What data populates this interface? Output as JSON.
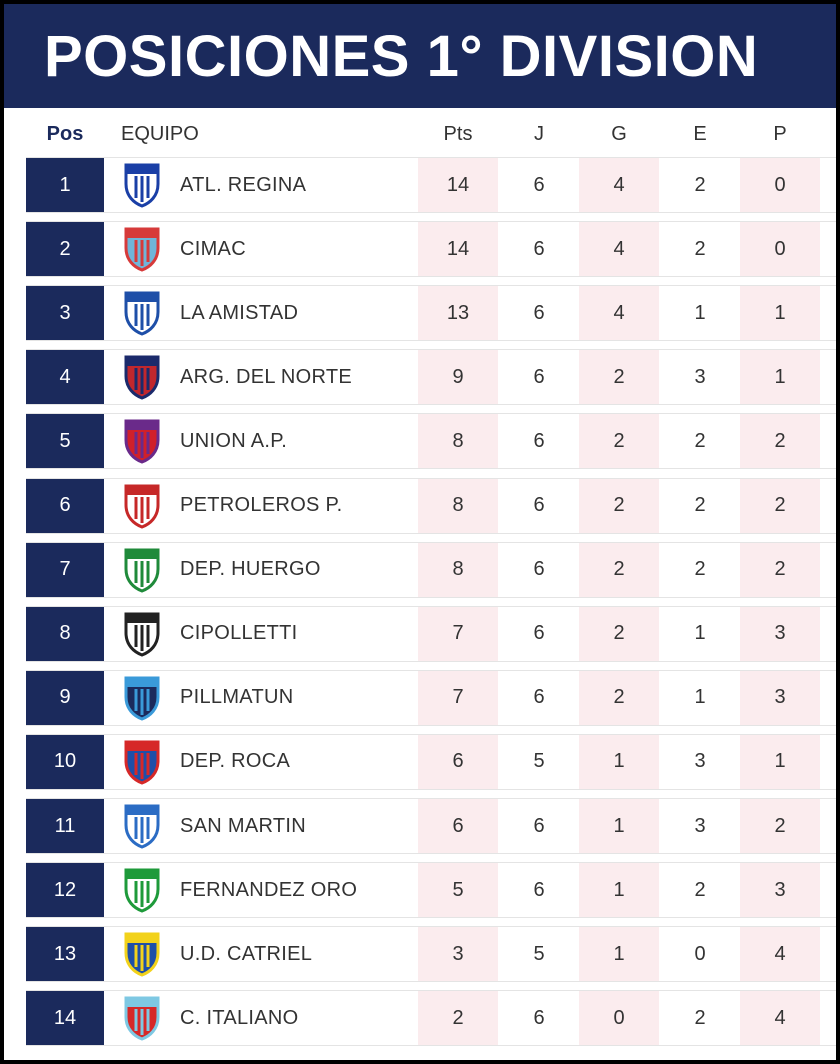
{
  "title": "POSICIONES 1° DIVISION",
  "columns": {
    "pos": "Pos",
    "team": "EQUIPO",
    "pts": "Pts",
    "j": "J",
    "g": "G",
    "e": "E",
    "p": "P"
  },
  "colors": {
    "banner": "#1b2a5c",
    "highlight": "#fbecee"
  },
  "rows": [
    {
      "pos": "1",
      "team": "ATL. REGINA",
      "pts": "14",
      "j": "6",
      "g": "4",
      "e": "2",
      "p": "0",
      "logo": "regina-crest-icon",
      "c1": "#1a3fa6",
      "c2": "#ffffff"
    },
    {
      "pos": "2",
      "team": "CIMAC",
      "pts": "14",
      "j": "6",
      "g": "4",
      "e": "2",
      "p": "0",
      "logo": "cimac-crest-icon",
      "c1": "#d63a3a",
      "c2": "#6fb5d9"
    },
    {
      "pos": "3",
      "team": "LA AMISTAD",
      "pts": "13",
      "j": "6",
      "g": "4",
      "e": "1",
      "p": "1",
      "logo": "amistad-crest-icon",
      "c1": "#1e4fa8",
      "c2": "#ffffff"
    },
    {
      "pos": "4",
      "team": "ARG. DEL NORTE",
      "pts": "9",
      "j": "6",
      "g": "2",
      "e": "3",
      "p": "1",
      "logo": "argnorte-crest-icon",
      "c1": "#1b2a6b",
      "c2": "#c1272d"
    },
    {
      "pos": "5",
      "team": "UNION A.P.",
      "pts": "8",
      "j": "6",
      "g": "2",
      "e": "2",
      "p": "2",
      "logo": "union-crest-icon",
      "c1": "#6a2a8a",
      "c2": "#d0202a"
    },
    {
      "pos": "6",
      "team": "PETROLEROS P.",
      "pts": "8",
      "j": "6",
      "g": "2",
      "e": "2",
      "p": "2",
      "logo": "petroleros-crest-icon",
      "c1": "#c62828",
      "c2": "#ffffff"
    },
    {
      "pos": "7",
      "team": "DEP. HUERGO",
      "pts": "8",
      "j": "6",
      "g": "2",
      "e": "2",
      "p": "2",
      "logo": "huergo-crest-icon",
      "c1": "#1f8a3a",
      "c2": "#ffffff"
    },
    {
      "pos": "8",
      "team": "CIPOLLETTI",
      "pts": "7",
      "j": "6",
      "g": "2",
      "e": "1",
      "p": "3",
      "logo": "cipolletti-crest-icon",
      "c1": "#222222",
      "c2": "#ffffff"
    },
    {
      "pos": "9",
      "team": "PILLMATUN",
      "pts": "7",
      "j": "6",
      "g": "2",
      "e": "1",
      "p": "3",
      "logo": "pillmatun-crest-icon",
      "c1": "#3a9ad9",
      "c2": "#1b2a5c"
    },
    {
      "pos": "10",
      "team": "DEP. ROCA",
      "pts": "6",
      "j": "5",
      "g": "1",
      "e": "3",
      "p": "1",
      "logo": "roca-crest-icon",
      "c1": "#d62828",
      "c2": "#1e4fa8"
    },
    {
      "pos": "11",
      "team": "SAN MARTIN",
      "pts": "6",
      "j": "6",
      "g": "1",
      "e": "3",
      "p": "2",
      "logo": "sanmartin-crest-icon",
      "c1": "#2b6cc4",
      "c2": "#ffffff"
    },
    {
      "pos": "12",
      "team": "FERNANDEZ ORO",
      "pts": "5",
      "j": "6",
      "g": "1",
      "e": "2",
      "p": "3",
      "logo": "fernandezoro-crest-icon",
      "c1": "#1e9a3a",
      "c2": "#ffffff"
    },
    {
      "pos": "13",
      "team": "U.D. CATRIEL",
      "pts": "3",
      "j": "5",
      "g": "1",
      "e": "0",
      "p": "4",
      "logo": "catriel-crest-icon",
      "c1": "#f2d21b",
      "c2": "#1e4fa8"
    },
    {
      "pos": "14",
      "team": "C. ITALIANO",
      "pts": "2",
      "j": "6",
      "g": "0",
      "e": "2",
      "p": "4",
      "logo": "italiano-crest-icon",
      "c1": "#7ec8e3",
      "c2": "#d62828"
    }
  ]
}
